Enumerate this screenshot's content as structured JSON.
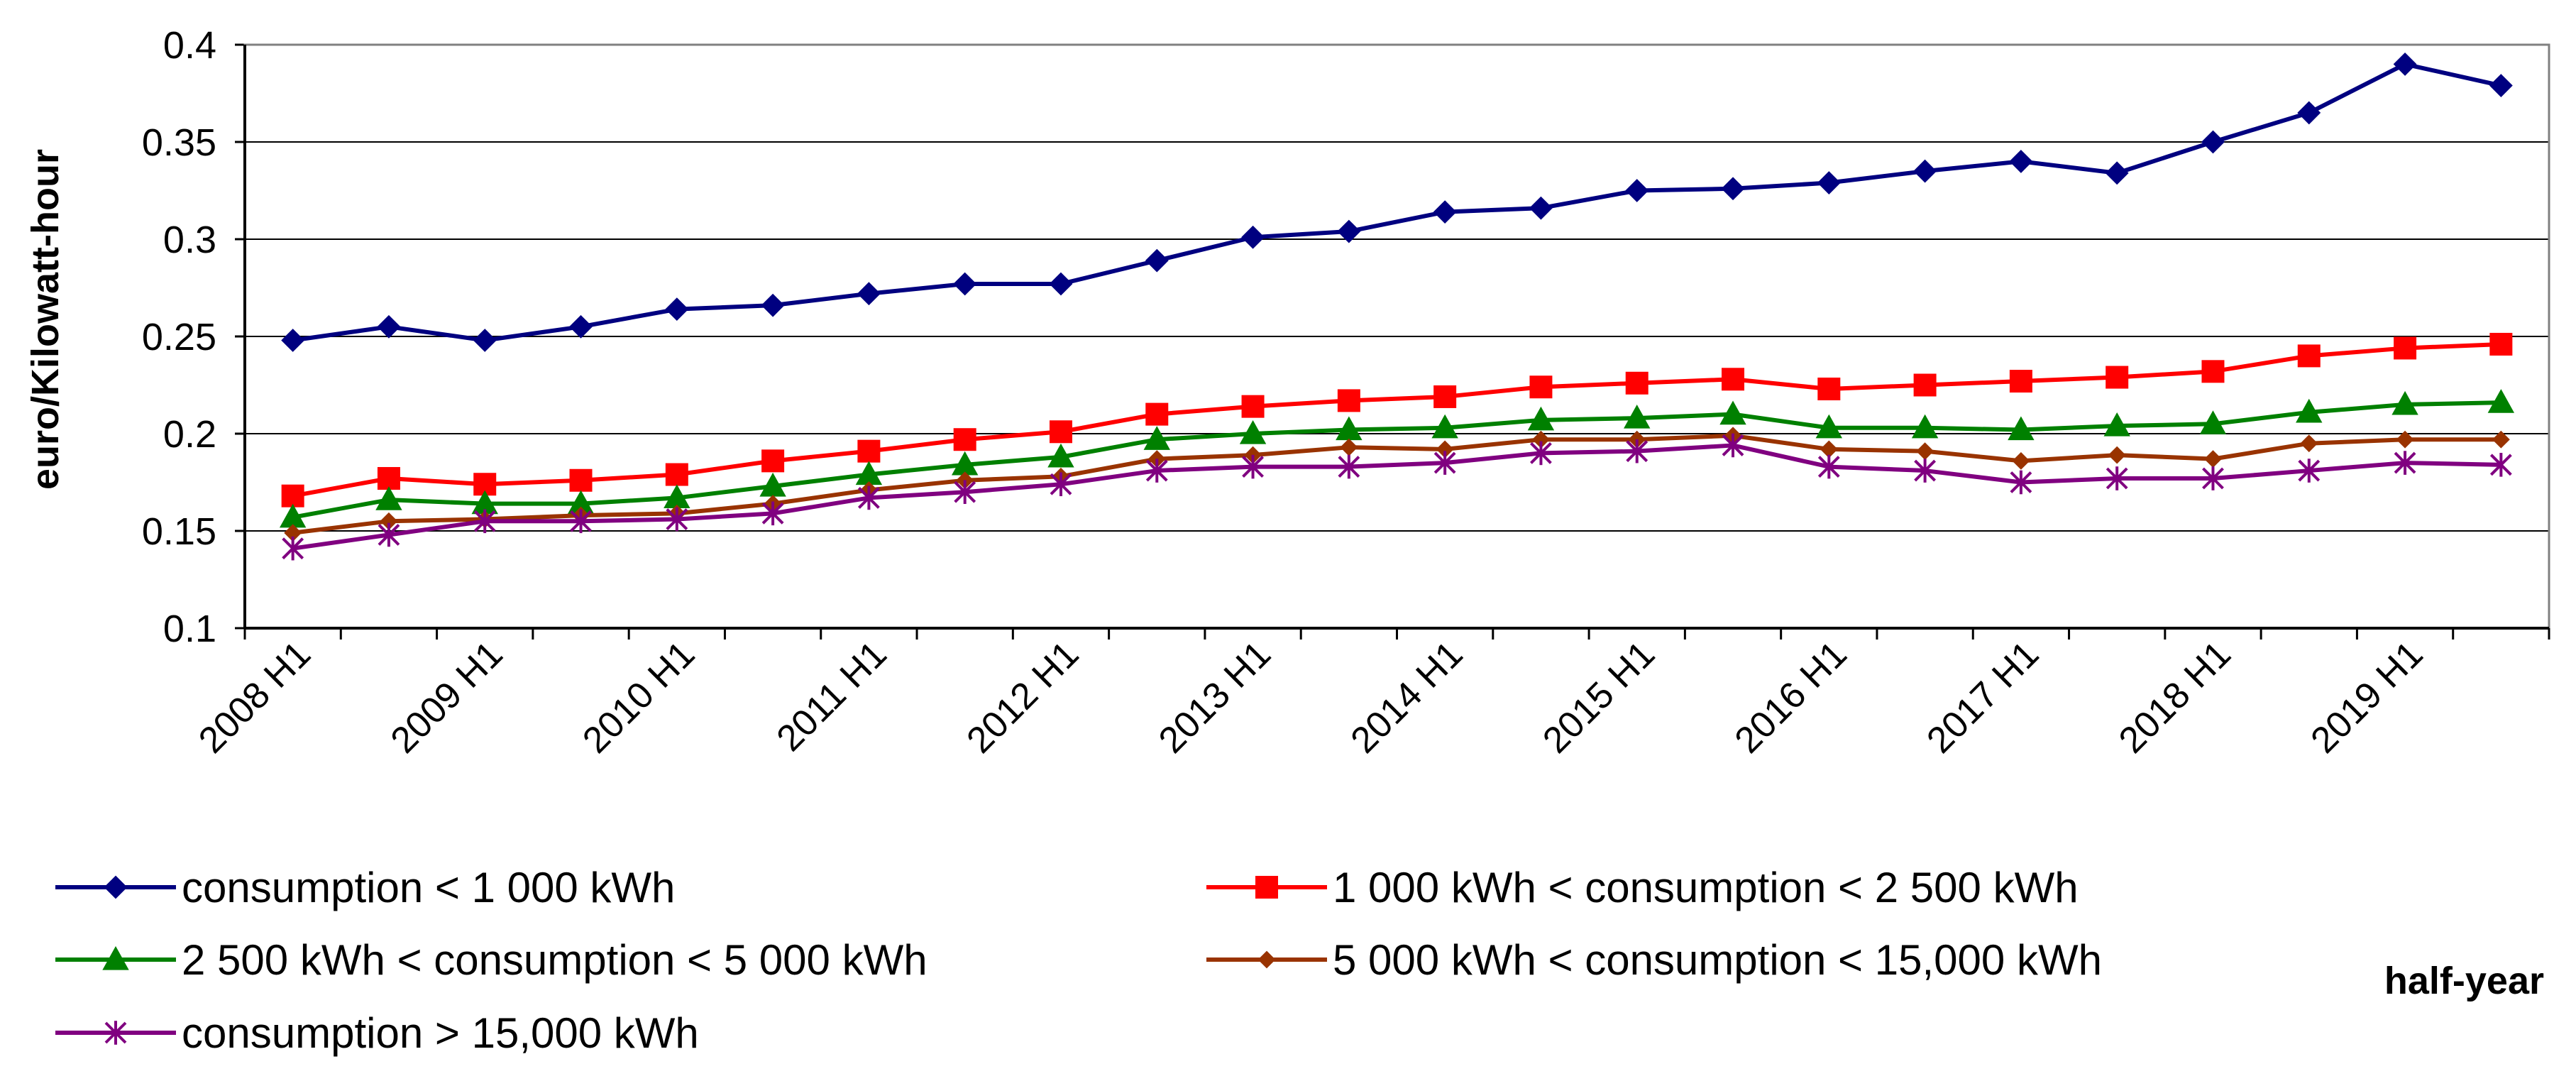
{
  "chart_data": {
    "type": "line",
    "title": "",
    "xlabel": "half-year",
    "ylabel": "euro/Kilowatt-hour",
    "ylim": [
      0.1,
      0.4
    ],
    "yticks": [
      "0.1",
      "0.15",
      "0.2",
      "0.25",
      "0.3",
      "0.35",
      "0.4"
    ],
    "grid": true,
    "legend_position": "bottom",
    "x": [
      "2008 H1",
      "2008 H2",
      "2009 H1",
      "2009 H2",
      "2010 H1",
      "2010 H2",
      "2011 H1",
      "2011 H2",
      "2012 H1",
      "2012 H2",
      "2013 H1",
      "2013 H2",
      "2014 H1",
      "2014 H2",
      "2015 H1",
      "2015 H2",
      "2016 H1",
      "2016 H2",
      "2017 H1",
      "2017 H2",
      "2018 H1",
      "2018 H2",
      "2019 H1",
      "2019 H2"
    ],
    "xticklabels": [
      "2008 H1",
      "2009 H1",
      "2010 H1",
      "2011 H1",
      "2012 H1",
      "2013 H1",
      "2014 H1",
      "2015 H1",
      "2016 H1",
      "2017 H1",
      "2018 H1",
      "2019 H1"
    ],
    "series": [
      {
        "name": "consumption < 1 000 kWh",
        "color": "#000080",
        "marker": "diamond",
        "values": [
          0.248,
          0.255,
          0.248,
          0.255,
          0.264,
          0.266,
          0.272,
          0.277,
          0.277,
          0.289,
          0.301,
          0.304,
          0.314,
          0.316,
          0.325,
          0.326,
          0.329,
          0.335,
          0.34,
          0.334,
          0.35,
          0.365,
          0.39,
          0.379
        ]
      },
      {
        "name": "1 000 kWh < consumption < 2 500 kWh",
        "color": "#FF0000",
        "marker": "square",
        "values": [
          0.168,
          0.177,
          0.174,
          0.176,
          0.179,
          0.186,
          0.191,
          0.197,
          0.201,
          0.21,
          0.214,
          0.217,
          0.219,
          0.224,
          0.226,
          0.228,
          0.223,
          0.225,
          0.227,
          0.229,
          0.232,
          0.24,
          0.244,
          0.246
        ]
      },
      {
        "name": "2 500 kWh < consumption < 5 000 kWh",
        "color": "#008000",
        "marker": "triangle",
        "values": [
          0.157,
          0.166,
          0.164,
          0.164,
          0.167,
          0.173,
          0.179,
          0.184,
          0.188,
          0.197,
          0.2,
          0.202,
          0.203,
          0.207,
          0.208,
          0.21,
          0.203,
          0.203,
          0.202,
          0.204,
          0.205,
          0.211,
          0.215,
          0.216
        ]
      },
      {
        "name": "5 000 kWh < consumption < 15,000 kWh",
        "color": "#993300",
        "marker": "small-diamond",
        "values": [
          0.149,
          0.155,
          0.156,
          0.158,
          0.159,
          0.164,
          0.171,
          0.176,
          0.178,
          0.187,
          0.189,
          0.193,
          0.192,
          0.197,
          0.197,
          0.199,
          0.192,
          0.191,
          0.186,
          0.189,
          0.187,
          0.195,
          0.197,
          0.197
        ]
      },
      {
        "name": "consumption > 15,000 kWh",
        "color": "#800080",
        "marker": "star",
        "values": [
          0.141,
          0.148,
          0.155,
          0.155,
          0.156,
          0.159,
          0.167,
          0.17,
          0.174,
          0.181,
          0.183,
          0.183,
          0.185,
          0.19,
          0.191,
          0.194,
          0.183,
          0.181,
          0.175,
          0.177,
          0.177,
          0.181,
          0.185,
          0.184
        ]
      }
    ]
  }
}
